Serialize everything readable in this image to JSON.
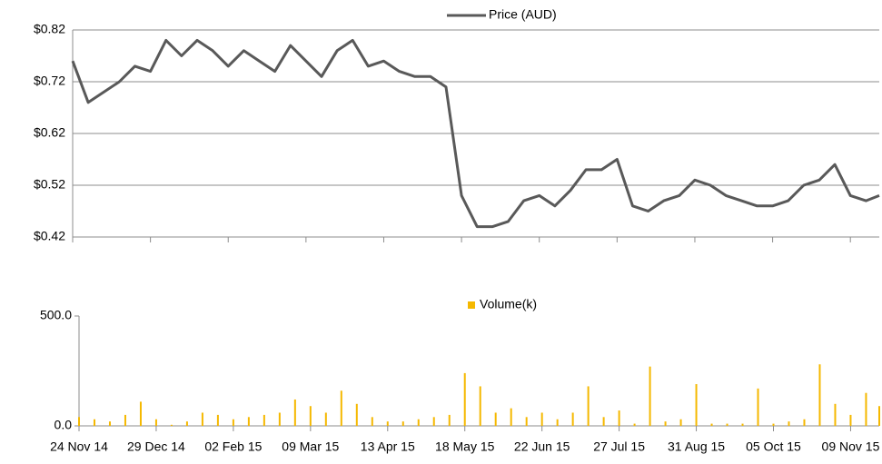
{
  "chart_data": [
    {
      "type": "line",
      "x": [
        "2014-11-24",
        "2014-12-01",
        "2014-12-08",
        "2014-12-15",
        "2014-12-22",
        "2014-12-29",
        "2015-01-05",
        "2015-01-12",
        "2015-01-19",
        "2015-01-26",
        "2015-02-02",
        "2015-02-09",
        "2015-02-16",
        "2015-02-23",
        "2015-03-02",
        "2015-03-09",
        "2015-03-16",
        "2015-03-23",
        "2015-03-30",
        "2015-04-06",
        "2015-04-13",
        "2015-04-20",
        "2015-04-27",
        "2015-05-04",
        "2015-05-11",
        "2015-05-18",
        "2015-05-25",
        "2015-06-01",
        "2015-06-08",
        "2015-06-15",
        "2015-06-22",
        "2015-06-29",
        "2015-07-06",
        "2015-07-13",
        "2015-07-20",
        "2015-07-27",
        "2015-08-03",
        "2015-08-10",
        "2015-08-17",
        "2015-08-24",
        "2015-08-31",
        "2015-09-07",
        "2015-09-14",
        "2015-09-21",
        "2015-09-28",
        "2015-10-05",
        "2015-10-12",
        "2015-10-19",
        "2015-10-26",
        "2015-11-02",
        "2015-11-09",
        "2015-11-16",
        "2015-11-22"
      ],
      "series": [
        {
          "name": "Price (AUD)",
          "color": "#595959",
          "values": [
            0.76,
            0.68,
            0.7,
            0.72,
            0.75,
            0.74,
            0.8,
            0.77,
            0.8,
            0.78,
            0.75,
            0.78,
            0.76,
            0.74,
            0.79,
            0.76,
            0.73,
            0.78,
            0.8,
            0.75,
            0.76,
            0.74,
            0.73,
            0.73,
            0.71,
            0.5,
            0.44,
            0.44,
            0.45,
            0.49,
            0.5,
            0.48,
            0.51,
            0.55,
            0.55,
            0.57,
            0.48,
            0.47,
            0.49,
            0.5,
            0.53,
            0.52,
            0.5,
            0.49,
            0.48,
            0.48,
            0.49,
            0.52,
            0.53,
            0.56,
            0.5,
            0.49,
            0.5
          ]
        }
      ],
      "xlim": [
        "2014-11-24",
        "2015-11-22"
      ],
      "xticks": [
        "2014-11-24",
        "2014-12-29",
        "2015-02-02",
        "2015-03-09",
        "2015-04-13",
        "2015-05-18",
        "2015-06-22",
        "2015-07-27",
        "2015-08-31",
        "2015-10-05",
        "2015-11-09"
      ],
      "ylim": [
        0.42,
        0.82
      ],
      "yticks": [
        {
          "value": 0.42,
          "label": "$0.42"
        },
        {
          "value": 0.52,
          "label": "$0.52"
        },
        {
          "value": 0.62,
          "label": "$0.62"
        },
        {
          "value": 0.72,
          "label": "$0.72"
        },
        {
          "value": 0.82,
          "label": "$0.82"
        }
      ],
      "grid": true
    },
    {
      "type": "bar",
      "x": [
        "2014-11-24",
        "2014-12-01",
        "2014-12-08",
        "2014-12-15",
        "2014-12-22",
        "2014-12-29",
        "2015-01-05",
        "2015-01-12",
        "2015-01-19",
        "2015-01-26",
        "2015-02-02",
        "2015-02-09",
        "2015-02-16",
        "2015-02-23",
        "2015-03-02",
        "2015-03-09",
        "2015-03-16",
        "2015-03-23",
        "2015-03-30",
        "2015-04-06",
        "2015-04-13",
        "2015-04-20",
        "2015-04-27",
        "2015-05-04",
        "2015-05-11",
        "2015-05-18",
        "2015-05-25",
        "2015-06-01",
        "2015-06-08",
        "2015-06-15",
        "2015-06-22",
        "2015-06-29",
        "2015-07-06",
        "2015-07-13",
        "2015-07-20",
        "2015-07-27",
        "2015-08-03",
        "2015-08-10",
        "2015-08-17",
        "2015-08-24",
        "2015-08-31",
        "2015-09-07",
        "2015-09-14",
        "2015-09-21",
        "2015-09-28",
        "2015-10-05",
        "2015-10-12",
        "2015-10-19",
        "2015-10-26",
        "2015-11-02",
        "2015-11-09",
        "2015-11-16",
        "2015-11-22"
      ],
      "series": [
        {
          "name": "Volume(k)",
          "color": "#f5b800",
          "values": [
            40,
            30,
            20,
            50,
            110,
            30,
            5,
            20,
            60,
            50,
            30,
            40,
            50,
            60,
            120,
            90,
            60,
            160,
            100,
            40,
            20,
            20,
            30,
            40,
            50,
            240,
            180,
            60,
            80,
            40,
            60,
            30,
            60,
            180,
            40,
            70,
            10,
            270,
            20,
            30,
            190,
            10,
            10,
            10,
            170,
            10,
            20,
            30,
            280,
            100,
            50,
            150,
            90
          ]
        }
      ],
      "xlim": [
        "2014-11-24",
        "2015-11-22"
      ],
      "xticks": [
        {
          "value": "2014-11-24",
          "label": "24 Nov 14"
        },
        {
          "value": "2014-12-29",
          "label": "29 Dec 14"
        },
        {
          "value": "2015-02-02",
          "label": "02 Feb 15"
        },
        {
          "value": "2015-03-09",
          "label": "09 Mar 15"
        },
        {
          "value": "2015-04-13",
          "label": "13 Apr 15"
        },
        {
          "value": "2015-05-18",
          "label": "18 May 15"
        },
        {
          "value": "2015-06-22",
          "label": "22 Jun 15"
        },
        {
          "value": "2015-07-27",
          "label": "27 Jul 15"
        },
        {
          "value": "2015-08-31",
          "label": "31 Aug 15"
        },
        {
          "value": "2015-10-05",
          "label": "05 Oct 15"
        },
        {
          "value": "2015-11-09",
          "label": "09 Nov 15"
        }
      ],
      "ylim": [
        0,
        500
      ],
      "yticks": [
        {
          "value": 0,
          "label": "0.0"
        },
        {
          "value": 500,
          "label": "500.0"
        }
      ],
      "grid": false
    }
  ]
}
